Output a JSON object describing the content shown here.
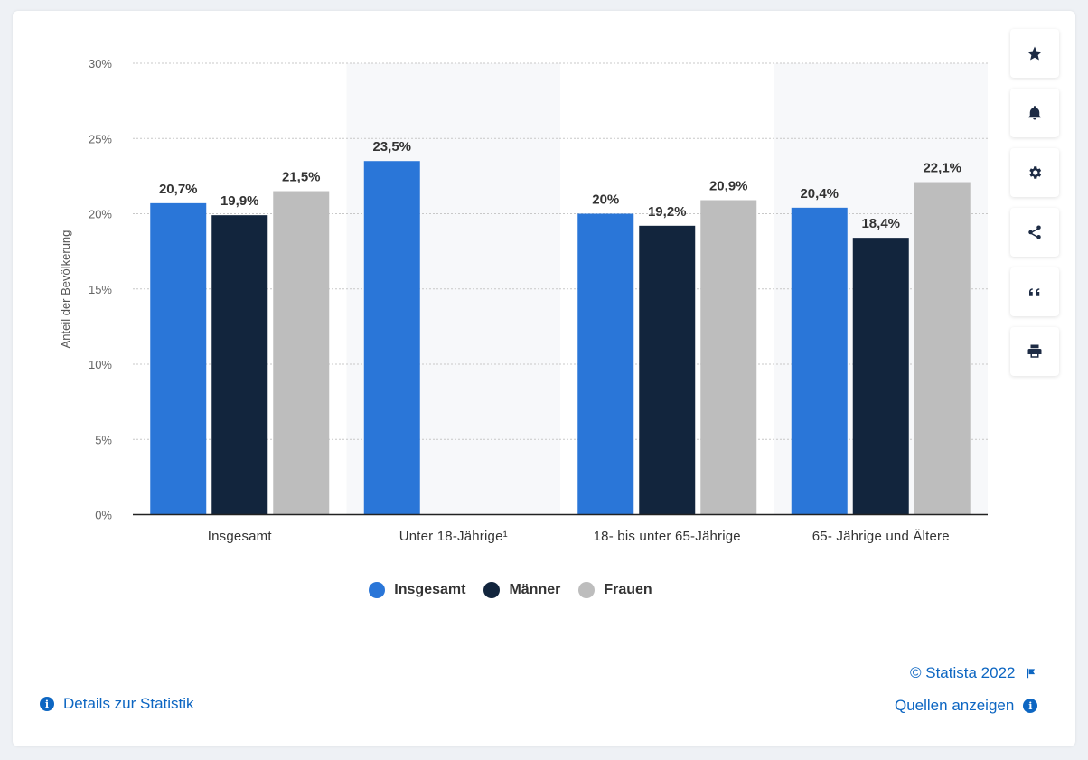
{
  "chart_data": {
    "type": "bar",
    "categories": [
      "Insgesamt",
      "Unter 18-Jährige¹",
      "18- bis unter 65-Jährige",
      "65- Jährige und Ältere"
    ],
    "series": [
      {
        "name": "Insgesamt",
        "color": "#2a76d8",
        "values": [
          20.7,
          23.5,
          20.0,
          20.4
        ],
        "labels": [
          "20,7%",
          "23,5%",
          "20%",
          "20,4%"
        ]
      },
      {
        "name": "Männer",
        "color": "#12253d",
        "values": [
          19.9,
          null,
          19.2,
          18.4
        ],
        "labels": [
          "19,9%",
          "",
          "19,2%",
          "18,4%"
        ]
      },
      {
        "name": "Frauen",
        "color": "#bdbdbd",
        "values": [
          21.5,
          null,
          20.9,
          22.1
        ],
        "labels": [
          "21,5%",
          "",
          "20,9%",
          "22,1%"
        ]
      }
    ],
    "ylabel": "Anteil der Bevölkerung",
    "ylim": [
      0,
      30
    ],
    "yticks": [
      0,
      5,
      10,
      15,
      20,
      25,
      30
    ],
    "ytick_labels": [
      "0%",
      "5%",
      "10%",
      "15%",
      "20%",
      "25%",
      "30%"
    ],
    "grid": true,
    "legend_position": "bottom"
  },
  "legend": [
    {
      "label": "Insgesamt",
      "color": "#2a76d8"
    },
    {
      "label": "Männer",
      "color": "#12253d"
    },
    {
      "label": "Frauen",
      "color": "#bdbdbd"
    }
  ],
  "toolbar": [
    {
      "name": "star-icon"
    },
    {
      "name": "bell-icon"
    },
    {
      "name": "gear-icon"
    },
    {
      "name": "share-icon"
    },
    {
      "name": "quote-icon"
    },
    {
      "name": "print-icon"
    }
  ],
  "footer": {
    "copyright": "© Statista 2022",
    "details": "Details zur Statistik",
    "sources": "Quellen anzeigen"
  },
  "colors": {
    "link": "#0d66c2",
    "band": "#f7f8fa"
  }
}
